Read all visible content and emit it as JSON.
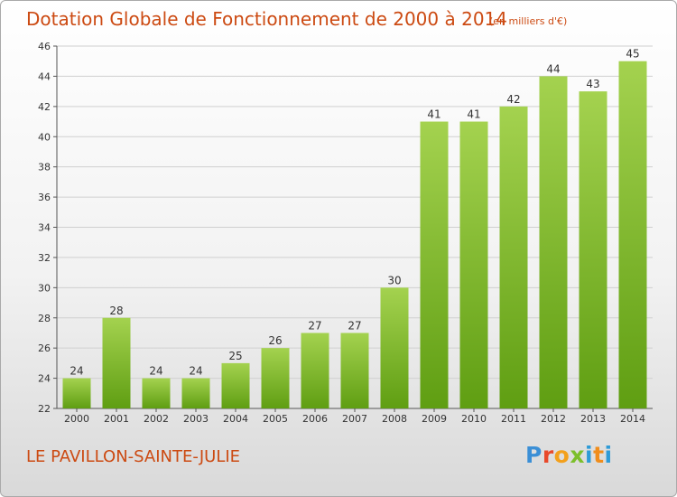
{
  "chart_data": {
    "type": "bar",
    "title": "Dotation Globale de Fonctionnement de 2000 à 2014",
    "subtitle": "(en milliers d'€)",
    "categories": [
      "2000",
      "2001",
      "2002",
      "2003",
      "2004",
      "2005",
      "2006",
      "2007",
      "2008",
      "2009",
      "2010",
      "2011",
      "2012",
      "2013",
      "2014"
    ],
    "values": [
      24,
      28,
      24,
      24,
      25,
      26,
      27,
      27,
      30,
      41,
      41,
      42,
      44,
      43,
      45
    ],
    "ylim": [
      22,
      46
    ],
    "yticks": [
      22,
      24,
      26,
      28,
      30,
      32,
      34,
      36,
      38,
      40,
      42,
      44,
      46
    ],
    "grid": true,
    "bar_color": "#7cbf2b"
  },
  "footer": {
    "location": "LE PAVILLON-SAINTE-JULIE",
    "logo": "Proxiti"
  },
  "colors": {
    "accent": "#cc4a12",
    "bar_light": "#a4d24f",
    "bar_dark": "#5f9e12",
    "grid": "#d0d0d0"
  }
}
